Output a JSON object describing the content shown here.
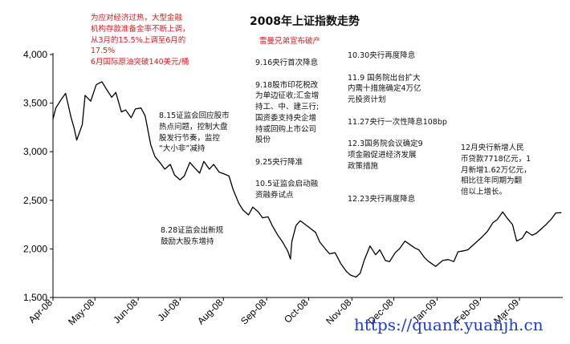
{
  "chart_data": {
    "type": "line",
    "title": "2008年上证指数走势",
    "xlabel": "",
    "ylabel": "",
    "ylim": [
      1500,
      4000
    ],
    "yticks": [
      "1,500",
      "2,000",
      "2,500",
      "3,000",
      "3,500",
      "4,000"
    ],
    "yticks_values": [
      1500,
      2000,
      2500,
      3000,
      3500,
      4000
    ],
    "x_tick_labels": [
      "Apr-08",
      "May-08",
      "Jun-08",
      "Jul-08",
      "Aug-08",
      "Sep-08",
      "Oct-08",
      "Nov-08",
      "Dec-08",
      "Jan-09",
      "Feb-09",
      "Mar-09"
    ],
    "grid": false,
    "line_color": "#000000",
    "annotation_color_red": "#e8161b",
    "watermark_color": "#1a3fd6",
    "series": [
      {
        "x": [
          "2008-04-01",
          "2008-04-03",
          "2008-04-07",
          "2008-04-10",
          "2008-04-14",
          "2008-04-16",
          "2008-04-18",
          "2008-04-22",
          "2008-04-24",
          "2008-04-28",
          "2008-05-02",
          "2008-05-06",
          "2008-05-09",
          "2008-05-13",
          "2008-05-16",
          "2008-05-20",
          "2008-05-23",
          "2008-05-27",
          "2008-05-30",
          "2008-06-03",
          "2008-06-06",
          "2008-06-10",
          "2008-06-13",
          "2008-06-17",
          "2008-06-20",
          "2008-06-24",
          "2008-06-27",
          "2008-07-01",
          "2008-07-04",
          "2008-07-08",
          "2008-07-11",
          "2008-07-15",
          "2008-07-18",
          "2008-07-22",
          "2008-07-25",
          "2008-07-29",
          "2008-08-01",
          "2008-08-05",
          "2008-08-08",
          "2008-08-12",
          "2008-08-15",
          "2008-08-19",
          "2008-08-22",
          "2008-08-26",
          "2008-08-29",
          "2008-09-02",
          "2008-09-05",
          "2008-09-09",
          "2008-09-12",
          "2008-09-16",
          "2008-09-18",
          "2008-09-19",
          "2008-09-22",
          "2008-09-25",
          "2008-09-26",
          "2008-10-06",
          "2008-10-09",
          "2008-10-13",
          "2008-10-16",
          "2008-10-20",
          "2008-10-24",
          "2008-10-28",
          "2008-10-31",
          "2008-11-04",
          "2008-11-07",
          "2008-11-10",
          "2008-11-14",
          "2008-11-18",
          "2008-11-21",
          "2008-11-25",
          "2008-11-28",
          "2008-12-02",
          "2008-12-05",
          "2008-12-09",
          "2008-12-12",
          "2008-12-16",
          "2008-12-19",
          "2008-12-23",
          "2008-12-26",
          "2008-12-31",
          "2009-01-05",
          "2009-01-09",
          "2009-01-13",
          "2009-01-16",
          "2009-01-20",
          "2009-01-23",
          "2009-02-02",
          "2009-02-06",
          "2009-02-10",
          "2009-02-13",
          "2009-02-17",
          "2009-02-20",
          "2009-02-24",
          "2009-02-27",
          "2009-03-03",
          "2009-03-06",
          "2009-03-10",
          "2009-03-13",
          "2009-03-17",
          "2009-03-20",
          "2009-03-24",
          "2009-03-27",
          "2009-03-31"
        ],
        "values": [
          3335,
          3450,
          3540,
          3600,
          3350,
          3250,
          3120,
          3280,
          3580,
          3520,
          3690,
          3720,
          3650,
          3560,
          3610,
          3410,
          3430,
          3350,
          3440,
          3450,
          3370,
          3070,
          2950,
          2880,
          2820,
          2870,
          2760,
          2710,
          2750,
          2890,
          2840,
          2780,
          2900,
          2820,
          2870,
          2790,
          2775,
          2750,
          2610,
          2470,
          2400,
          2350,
          2430,
          2380,
          2320,
          2330,
          2240,
          2140,
          2080,
          1980,
          1895,
          2075,
          2240,
          2290,
          2280,
          2170,
          2070,
          2000,
          1950,
          1960,
          1850,
          1770,
          1730,
          1710,
          1750,
          1890,
          2030,
          1940,
          1990,
          1880,
          1870,
          1960,
          2000,
          2080,
          2050,
          2010,
          1990,
          1910,
          1870,
          1820,
          1880,
          1890,
          1870,
          1970,
          1980,
          1990,
          2120,
          2180,
          2270,
          2300,
          2380,
          2320,
          2250,
          2080,
          2110,
          2180,
          2140,
          2160,
          2210,
          2250,
          2310,
          2370,
          2373
        ]
      }
    ],
    "annotations": {
      "top_left": [
        "为应对经济过热，大型金融",
        "机构存款准备金率不断上调，",
        "从3月的15.5%上调至6月的",
        "17.5%",
        "6月国际原油突破140美元/桶"
      ],
      "lehman": "雷曼兄弟宣布破产",
      "aug15": [
        "8.15证监会回应股市",
        "热点问题，控制大盘",
        "股发行节奏，监控",
        "“大小非”减持"
      ],
      "aug28": [
        "8.28证监会出新规",
        "鼓励大股东增持"
      ],
      "sep": [
        "9.16央行首次降息",
        "",
        "9.18股市印花税改",
        "为单边征收;汇金增",
        "持工、中、建三行;",
        "国资委支持央企增",
        "持或回购上市公司",
        "股份",
        "",
        "9.25央行降准",
        "",
        "10.5证监会启动融",
        "资融券试点"
      ],
      "oct_nov": [
        "10.30央行再度降息",
        "",
        "11.9 国务院出台扩大",
        "内需十措施确定4万亿",
        "元投资计划",
        "",
        "11.27央行一次性降息108bp",
        "",
        "12.3国务院会议确定9",
        "项金融促进经济发展",
        "政策措施",
        "",
        "",
        "12.23央行再度降息"
      ],
      "dec": [
        "12月央行新增人民",
        "币贷款7718亿元，1",
        "月新增1.62万亿元，",
        "相比往年同期为翻",
        "倍以上增长。"
      ]
    },
    "watermark": "https://quant.yuanjh.cn"
  }
}
